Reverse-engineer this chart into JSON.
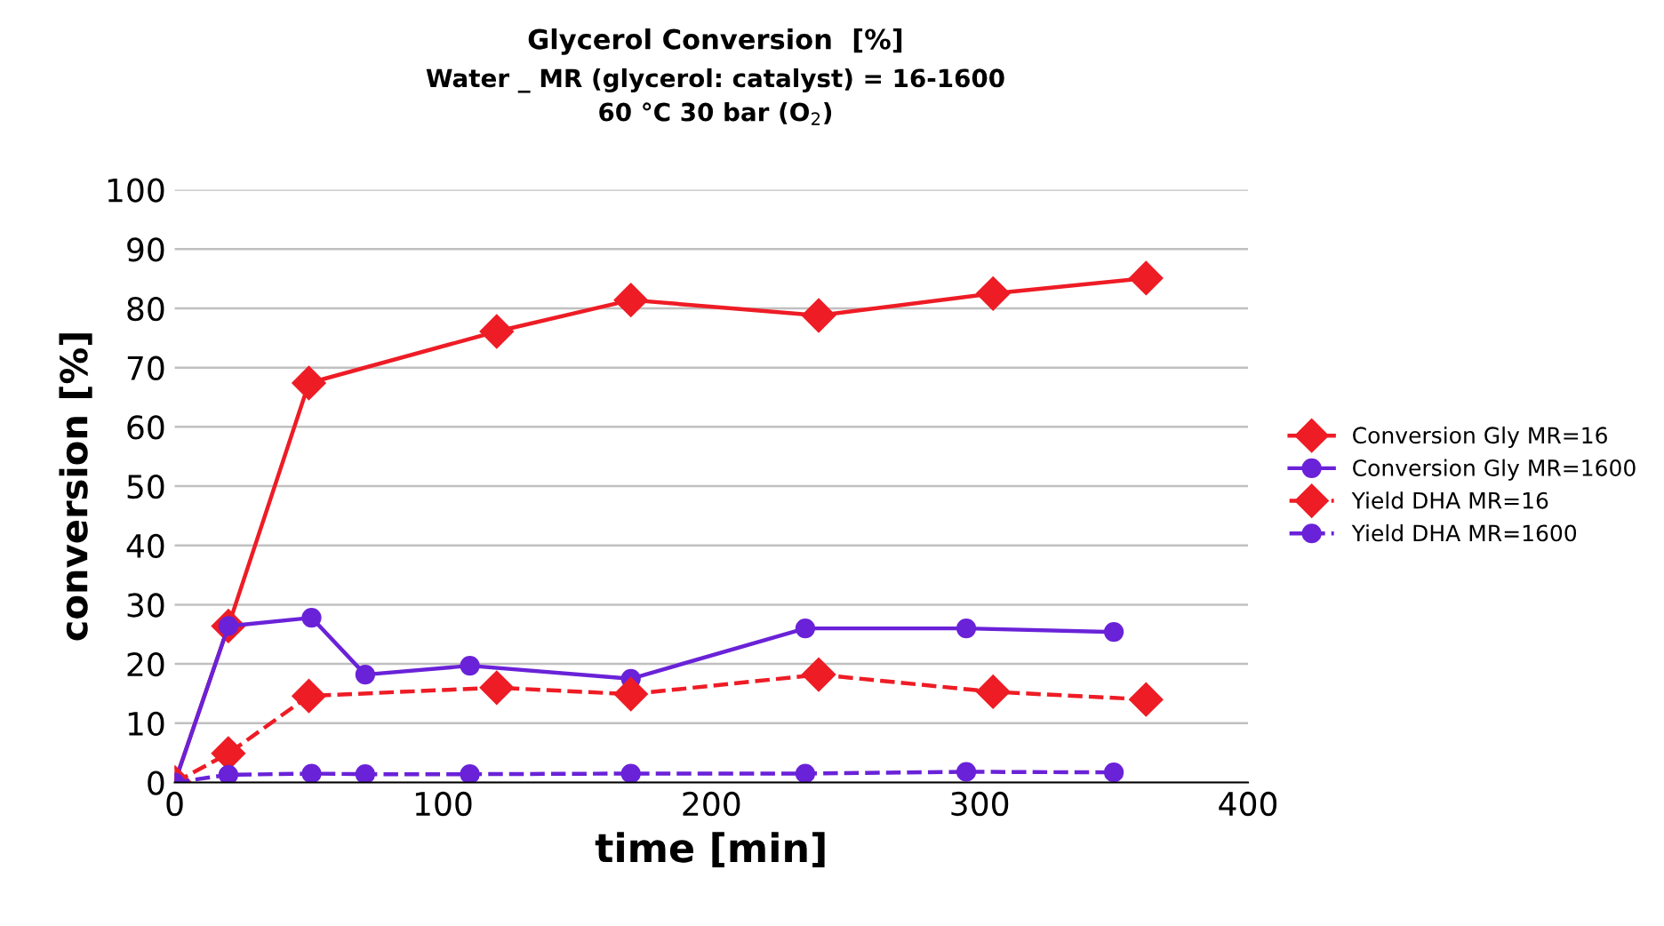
{
  "chart_data": {
    "type": "line",
    "title": "Glycerol Conversion  [%]",
    "subtitle": "Water _ MR (glycerol: catalyst) = 16-1600\n60 °C 30 bar (O$_{2}$)",
    "xlabel": "time [min]",
    "ylabel": "conversion [%]",
    "xlim": [
      0,
      400
    ],
    "xticks": [
      0,
      100,
      200,
      300,
      400
    ],
    "ylim": [
      0,
      100
    ],
    "yticks": [
      0,
      10,
      20,
      30,
      40,
      50,
      60,
      70,
      80,
      90,
      100
    ],
    "grid": "y",
    "legend": "right",
    "series": [
      {
        "name": "Conversion Gly MR=16",
        "color": "#ee1c25",
        "marker": "diamond",
        "line_style": "solid",
        "x": [
          0,
          20,
          50,
          120,
          170,
          240,
          305,
          362
        ],
        "values": [
          0,
          26.4,
          67.4,
          76.1,
          81.4,
          78.8,
          82.5,
          85.1
        ]
      },
      {
        "name": "Conversion Gly MR=1600",
        "color": "#6a22d8",
        "marker": "circle",
        "line_style": "solid",
        "x": [
          0,
          20,
          51,
          71,
          110,
          170,
          235,
          295,
          350
        ],
        "values": [
          0,
          26.4,
          27.8,
          18.2,
          19.7,
          17.5,
          26,
          26,
          25.4
        ]
      },
      {
        "name": "Yield DHA MR=16",
        "color": "#ee1c25",
        "marker": "diamond",
        "line_style": "dashed",
        "x": [
          0,
          20,
          50,
          120,
          170,
          240,
          305,
          362
        ],
        "values": [
          0,
          4.9,
          14.6,
          16,
          14.9,
          18.2,
          15.3,
          14
        ]
      },
      {
        "name": "Yield DHA MR=1600",
        "color": "#6a22d8",
        "marker": "circle",
        "line_style": "dashed",
        "x": [
          0,
          20,
          51,
          71,
          110,
          170,
          235,
          295,
          350
        ],
        "values": [
          0,
          1.3,
          1.5,
          1.4,
          1.4,
          1.5,
          1.5,
          1.8,
          1.7
        ]
      }
    ]
  }
}
